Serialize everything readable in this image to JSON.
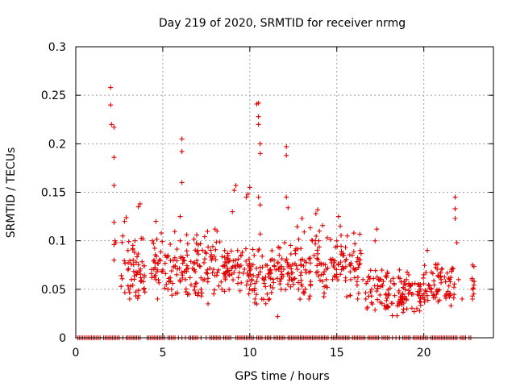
{
  "chart_data": {
    "type": "scatter",
    "title": "Day 219 of 2020, SRMTID for receiver nrmg",
    "xlabel": "GPS time / hours",
    "ylabel": "SRMTID / TECUs",
    "xlim": [
      0,
      24
    ],
    "ylim": [
      0,
      0.3
    ],
    "xticks": [
      0,
      5,
      10,
      15,
      20
    ],
    "xtick_labels": [
      "0",
      "5",
      "10",
      "15",
      "20"
    ],
    "yticks": [
      0,
      0.05,
      0.1,
      0.15,
      0.2,
      0.25,
      0.3
    ],
    "ytick_labels": [
      "0",
      "0.05",
      "0.1",
      "0.15",
      "0.2",
      "0.25",
      "0.3"
    ],
    "grid": true,
    "marker": "+",
    "color": "#e00000",
    "series": [
      {
        "name": "SRMTID",
        "points": [
          [
            2.0,
            0.258
          ],
          [
            2.0,
            0.24
          ],
          [
            2.05,
            0.22
          ],
          [
            2.2,
            0.217
          ],
          [
            2.2,
            0.186
          ],
          [
            2.2,
            0.157
          ],
          [
            2.2,
            0.119
          ],
          [
            2.25,
            0.1
          ],
          [
            2.2,
            0.096
          ],
          [
            2.2,
            0.08
          ],
          [
            2.3,
            0.098
          ],
          [
            2.7,
            0.105
          ],
          [
            2.8,
            0.12
          ],
          [
            2.9,
            0.124
          ],
          [
            3.0,
            0.09
          ],
          [
            3.0,
            0.07
          ],
          [
            3.05,
            0.05
          ],
          [
            3.1,
            0.04
          ],
          [
            3.2,
            0.06
          ],
          [
            3.3,
            0.08
          ],
          [
            3.4,
            0.1
          ],
          [
            3.5,
            0.065
          ],
          [
            3.6,
            0.135
          ],
          [
            3.7,
            0.138
          ],
          [
            3.9,
            0.05
          ],
          [
            4.4,
            0.1
          ],
          [
            4.5,
            0.08
          ],
          [
            4.6,
            0.12
          ],
          [
            4.6,
            0.06
          ],
          [
            4.7,
            0.04
          ],
          [
            5.0,
            0.07
          ],
          [
            5.2,
            0.055
          ],
          [
            5.5,
            0.05
          ],
          [
            5.6,
            0.08
          ],
          [
            5.8,
            0.065
          ],
          [
            6.0,
            0.1
          ],
          [
            6.0,
            0.125
          ],
          [
            6.1,
            0.16
          ],
          [
            6.1,
            0.192
          ],
          [
            6.1,
            0.205
          ],
          [
            6.2,
            0.08
          ],
          [
            6.3,
            0.06
          ],
          [
            6.5,
            0.045
          ],
          [
            6.8,
            0.07
          ],
          [
            7.0,
            0.09
          ],
          [
            7.2,
            0.05
          ],
          [
            7.4,
            0.06
          ],
          [
            7.6,
            0.035
          ],
          [
            7.8,
            0.08
          ],
          [
            8.0,
            0.112
          ],
          [
            8.2,
            0.07
          ],
          [
            8.4,
            0.05
          ],
          [
            8.6,
            0.06
          ],
          [
            8.8,
            0.065
          ],
          [
            9.0,
            0.13
          ],
          [
            9.1,
            0.152
          ],
          [
            9.2,
            0.157
          ],
          [
            9.3,
            0.09
          ],
          [
            9.5,
            0.085
          ],
          [
            9.8,
            0.145
          ],
          [
            9.9,
            0.148
          ],
          [
            10.0,
            0.155
          ],
          [
            10.1,
            0.06
          ],
          [
            10.3,
            0.04
          ],
          [
            10.4,
            0.241
          ],
          [
            10.5,
            0.242
          ],
          [
            10.5,
            0.228
          ],
          [
            10.5,
            0.22
          ],
          [
            10.6,
            0.2
          ],
          [
            10.6,
            0.19
          ],
          [
            10.5,
            0.145
          ],
          [
            10.6,
            0.137
          ],
          [
            10.6,
            0.107
          ],
          [
            10.8,
            0.06
          ],
          [
            11.0,
            0.045
          ],
          [
            11.4,
            0.08
          ],
          [
            11.5,
            0.07
          ],
          [
            11.6,
            0.022
          ],
          [
            11.8,
            0.05
          ],
          [
            12.0,
            0.098
          ],
          [
            12.1,
            0.145
          ],
          [
            12.1,
            0.197
          ],
          [
            12.1,
            0.188
          ],
          [
            12.2,
            0.134
          ],
          [
            12.4,
            0.06
          ],
          [
            12.6,
            0.09
          ],
          [
            12.8,
            0.05
          ],
          [
            13.0,
            0.123
          ],
          [
            13.2,
            0.07
          ],
          [
            13.4,
            0.04
          ],
          [
            13.6,
            0.1
          ],
          [
            13.8,
            0.128
          ],
          [
            13.9,
            0.132
          ],
          [
            14.0,
            0.11
          ],
          [
            14.1,
            0.065
          ],
          [
            14.4,
            0.06
          ],
          [
            14.7,
            0.08
          ],
          [
            15.0,
            0.1
          ],
          [
            15.1,
            0.125
          ],
          [
            15.2,
            0.115
          ],
          [
            15.4,
            0.085
          ],
          [
            15.6,
            0.105
          ],
          [
            15.8,
            0.06
          ],
          [
            16.0,
            0.07
          ],
          [
            16.2,
            0.04
          ],
          [
            16.5,
            0.06
          ],
          [
            17.0,
            0.05
          ],
          [
            17.2,
            0.1
          ],
          [
            17.3,
            0.112
          ],
          [
            17.5,
            0.06
          ],
          [
            17.8,
            0.03
          ],
          [
            18.0,
            0.045
          ],
          [
            18.3,
            0.055
          ],
          [
            18.6,
            0.07
          ],
          [
            18.8,
            0.04
          ],
          [
            19.0,
            0.06
          ],
          [
            19.3,
            0.045
          ],
          [
            19.6,
            0.03
          ],
          [
            19.8,
            0.055
          ],
          [
            20.0,
            0.065
          ],
          [
            20.2,
            0.09
          ],
          [
            20.4,
            0.05
          ],
          [
            20.7,
            0.075
          ],
          [
            21.0,
            0.06
          ],
          [
            21.3,
            0.045
          ],
          [
            21.6,
            0.07
          ],
          [
            21.8,
            0.145
          ],
          [
            21.8,
            0.133
          ],
          [
            21.8,
            0.123
          ],
          [
            21.9,
            0.098
          ],
          [
            22.0,
            0.06
          ],
          [
            22.2,
            0.04
          ],
          [
            22.8,
            0.075
          ],
          [
            22.8,
            0.05
          ],
          [
            22.8,
            0.04
          ]
        ]
      }
    ],
    "dense_bands": [
      {
        "x_range": [
          2.6,
          4.0
        ],
        "y_range": [
          0.035,
          0.11
        ]
      },
      {
        "x_range": [
          4.3,
          5.0
        ],
        "y_range": [
          0.04,
          0.12
        ]
      },
      {
        "x_range": [
          5.1,
          8.6
        ],
        "y_range": [
          0.03,
          0.115
        ]
      },
      {
        "x_range": [
          8.6,
          10.0
        ],
        "y_range": [
          0.04,
          0.1
        ]
      },
      {
        "x_range": [
          10.0,
          11.2
        ],
        "y_range": [
          0.03,
          0.1
        ]
      },
      {
        "x_range": [
          11.2,
          12.5
        ],
        "y_range": [
          0.04,
          0.1
        ]
      },
      {
        "x_range": [
          12.5,
          14.5
        ],
        "y_range": [
          0.03,
          0.12
        ]
      },
      {
        "x_range": [
          14.6,
          16.4
        ],
        "y_range": [
          0.04,
          0.11
        ]
      },
      {
        "x_range": [
          16.6,
          18.0
        ],
        "y_range": [
          0.025,
          0.075
        ]
      },
      {
        "x_range": [
          18.0,
          20.0
        ],
        "y_range": [
          0.02,
          0.07
        ]
      },
      {
        "x_range": [
          20.0,
          21.8
        ],
        "y_range": [
          0.03,
          0.08
        ]
      },
      {
        "x_range": [
          22.7,
          22.9
        ],
        "y_range": [
          0.035,
          0.075
        ]
      }
    ],
    "zero_band": {
      "x_range": [
        0.0,
        22.8
      ],
      "y": 0
    }
  }
}
